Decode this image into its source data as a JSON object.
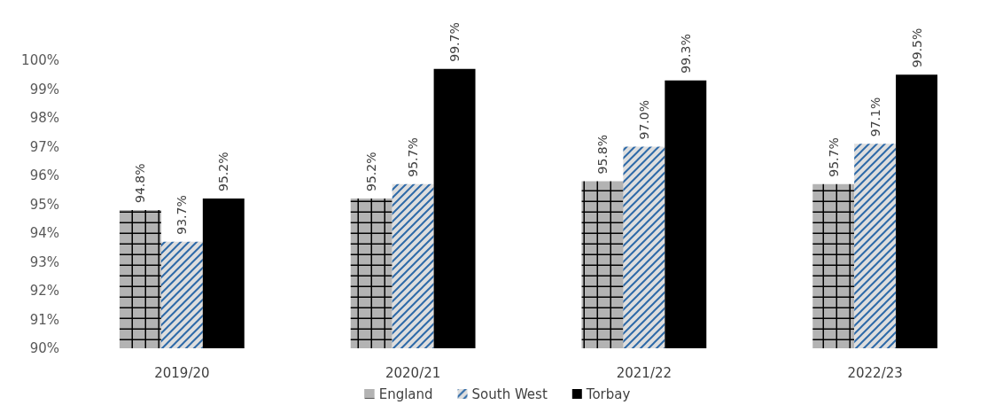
{
  "chart_data": {
    "type": "bar",
    "categories": [
      "2019/20",
      "2020/21",
      "2021/22",
      "2022/23"
    ],
    "series": [
      {
        "name": "England",
        "color": "#b3b3b3",
        "values": [
          94.8,
          95.2,
          95.8,
          95.7
        ],
        "value_labels": [
          "94.8%",
          "95.2%",
          "95.8%",
          "95.7%"
        ]
      },
      {
        "name": "South West",
        "color": "#2e6aa8",
        "values": [
          93.7,
          95.7,
          97.0,
          97.1
        ],
        "value_labels": [
          "93.7%",
          "95.7%",
          "97.0%",
          "97.1%"
        ]
      },
      {
        "name": "Torbay",
        "color": "#000000",
        "values": [
          95.2,
          99.7,
          99.3,
          99.5
        ],
        "value_labels": [
          "95.2%",
          "99.7%",
          "99.3%",
          "99.5%"
        ]
      }
    ],
    "ylim": [
      90,
      100
    ],
    "yticks": [
      {
        "value": 90,
        "label": "90%"
      },
      {
        "value": 91,
        "label": "91%"
      },
      {
        "value": 92,
        "label": "92%"
      },
      {
        "value": 93,
        "label": "93%"
      },
      {
        "value": 94,
        "label": "94%"
      },
      {
        "value": 95,
        "label": "95%"
      },
      {
        "value": 96,
        "label": "96%"
      },
      {
        "value": 97,
        "label": "97%"
      },
      {
        "value": 98,
        "label": "98%"
      },
      {
        "value": 99,
        "label": "99%"
      },
      {
        "value": 100,
        "label": "100%"
      }
    ],
    "grid": false,
    "legend": "bottom"
  }
}
